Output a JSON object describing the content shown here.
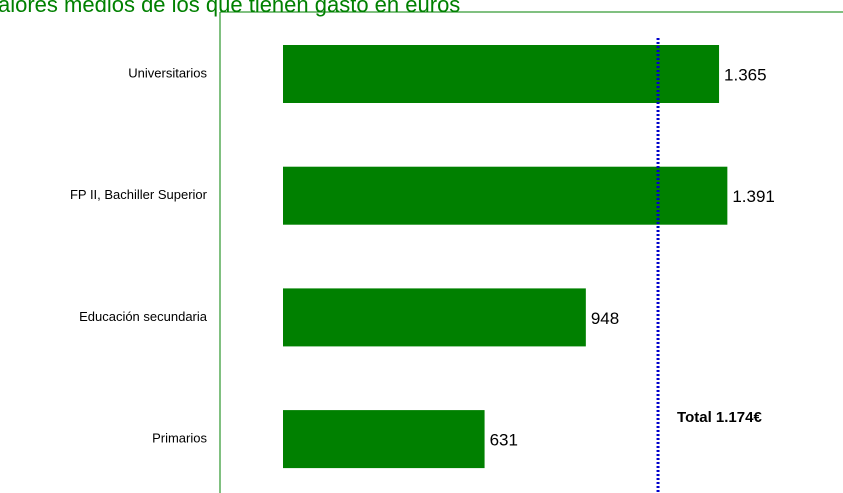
{
  "chart_data": {
    "type": "barh",
    "title": "alores medios de los que tienen gasto en euros",
    "categories": [
      "Universitarios",
      "FP II, Bachiller Superior",
      "Educación secundaria",
      "Primarios"
    ],
    "values": [
      1365,
      1391,
      948,
      631
    ],
    "value_labels": [
      "1.365",
      "1.391",
      "948",
      "631"
    ],
    "color": "#008000",
    "xlim": [
      0,
      1753
    ],
    "reference": {
      "value": 1174,
      "label": "Total 1.174€",
      "color": "#0000cc"
    }
  }
}
